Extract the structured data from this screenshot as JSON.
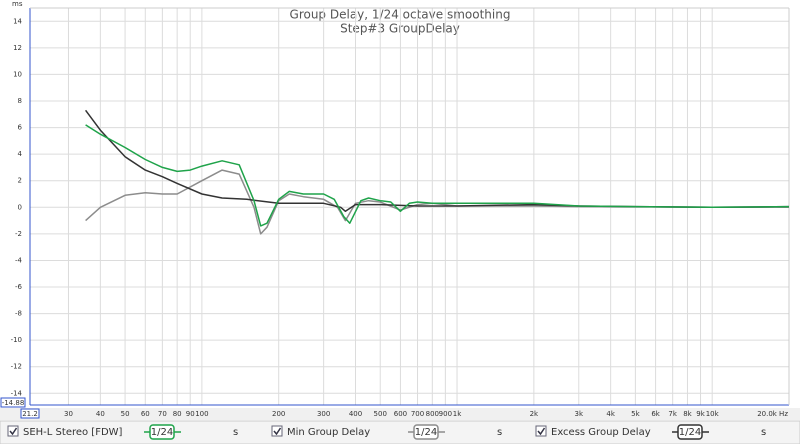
{
  "chart_data": {
    "type": "line",
    "title": "Group Delay, 1/24 octave smoothing",
    "subtitle": "Step#3 GroupDelay",
    "y_unit": "ms",
    "log_x": true,
    "grid": true,
    "xlim": [
      21.2,
      20000
    ],
    "ylim": [
      -14.88,
      15
    ],
    "xticks": [
      30,
      40,
      50,
      60,
      70,
      80,
      90,
      100,
      200,
      300,
      400,
      500,
      600,
      700,
      800,
      900,
      {
        "value": 1000,
        "label": "1k"
      },
      {
        "value": 2000,
        "label": "2k"
      },
      {
        "value": 3000,
        "label": "3k"
      },
      {
        "value": 4000,
        "label": "4k"
      },
      {
        "value": 5000,
        "label": "5k"
      },
      {
        "value": 6000,
        "label": "6k"
      },
      {
        "value": 7000,
        "label": "7k"
      },
      {
        "value": 8000,
        "label": "8k"
      },
      {
        "value": 9000,
        "label": "9k"
      },
      {
        "value": 10000,
        "label": "10k"
      },
      {
        "value": 20000,
        "label": "20.0k Hz"
      }
    ],
    "yticks": [
      -14,
      -12,
      -10,
      -8,
      -6,
      -4,
      -2,
      0,
      2,
      4,
      6,
      8,
      10,
      12,
      14
    ],
    "series": [
      {
        "name": "SEH-L Stereo [FDW]",
        "color": "#1fa34a",
        "smoothing": "1/24",
        "unit": "s",
        "x": [
          35,
          40,
          50,
          60,
          70,
          80,
          90,
          100,
          120,
          140,
          160,
          170,
          180,
          200,
          220,
          250,
          300,
          330,
          360,
          380,
          420,
          450,
          500,
          550,
          600,
          650,
          700,
          800,
          1000,
          1500,
          2000,
          3000,
          5000,
          10000,
          20000
        ],
        "values": [
          6.2,
          5.5,
          4.5,
          3.6,
          3.0,
          2.7,
          2.8,
          3.1,
          3.5,
          3.2,
          0.5,
          -1.4,
          -1.2,
          0.6,
          1.2,
          1.0,
          1.0,
          0.6,
          -0.7,
          -1.2,
          0.5,
          0.7,
          0.5,
          0.4,
          -0.3,
          0.3,
          0.4,
          0.3,
          0.3,
          0.3,
          0.3,
          0.1,
          0.05,
          0,
          0.05
        ]
      },
      {
        "name": "Min Group Delay",
        "color": "#8c8c8c",
        "smoothing": "1/24",
        "unit": "s",
        "x": [
          35,
          40,
          50,
          60,
          70,
          80,
          100,
          120,
          140,
          160,
          170,
          180,
          200,
          220,
          250,
          300,
          340,
          365,
          400,
          450,
          500,
          600,
          700,
          800,
          1000,
          2000,
          3000,
          10000,
          20000
        ],
        "values": [
          -1.0,
          0,
          0.9,
          1.1,
          1.0,
          1.0,
          2.0,
          2.8,
          2.5,
          0,
          -2.0,
          -1.5,
          0.5,
          1.0,
          0.8,
          0.6,
          0,
          -1.0,
          0.3,
          0.5,
          0.4,
          -0.2,
          0.2,
          0.3,
          0.1,
          0.1,
          0.05,
          0,
          0
        ]
      },
      {
        "name": "Excess Group Delay",
        "color": "#333333",
        "smoothing": "1/24",
        "unit": "s",
        "x": [
          35,
          40,
          50,
          60,
          70,
          80,
          100,
          120,
          150,
          200,
          300,
          350,
          365,
          400,
          500,
          700,
          1000,
          2000,
          3000,
          5000,
          10000,
          20000
        ],
        "values": [
          7.3,
          5.8,
          3.8,
          2.8,
          2.3,
          1.8,
          1.0,
          0.7,
          0.6,
          0.3,
          0.3,
          0,
          -0.3,
          0.2,
          0.2,
          0.1,
          0.1,
          0.2,
          0.1,
          0.05,
          0,
          0.05
        ]
      }
    ]
  }
}
